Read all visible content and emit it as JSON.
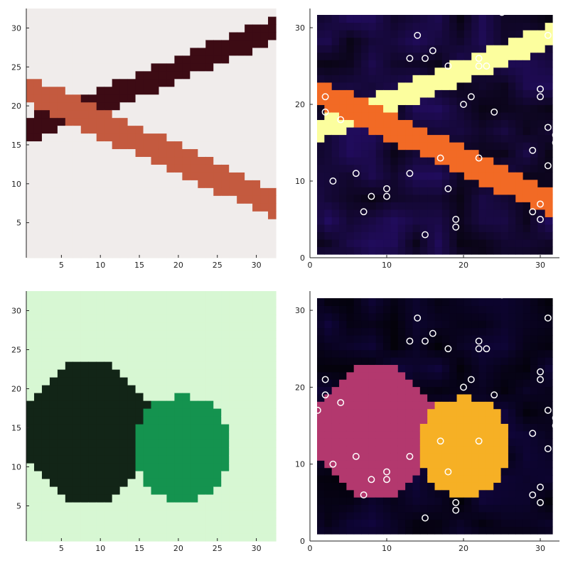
{
  "chart_data": [
    {
      "id": "top-left",
      "type": "heatmap",
      "title": "",
      "xlabel": "",
      "ylabel": "",
      "grid": 32,
      "xlim": [
        0.5,
        32.5
      ],
      "ylim": [
        0.5,
        32.5
      ],
      "xticks": [
        "5",
        "10",
        "15",
        "20",
        "25",
        "30"
      ],
      "yticks": [
        "5",
        "10",
        "15",
        "20",
        "25",
        "30"
      ],
      "background_color": "#f0eceb",
      "series": [
        {
          "color": "#3d0b14",
          "label_value": 1,
          "band": {
            "x0": 1,
            "y0": 17,
            "x1": 32,
            "y1": 29.7,
            "half_width": 1.6
          }
        },
        {
          "color": "#c45a3f",
          "label_value": 2,
          "band": {
            "x0": 1,
            "y0": 22,
            "x1": 32,
            "y1": 7.6,
            "half_width": 1.9
          }
        }
      ]
    },
    {
      "id": "top-right",
      "type": "heatmap",
      "title": "",
      "xlabel": "",
      "ylabel": "",
      "grid": 32,
      "xlim": [
        0,
        32.5
      ],
      "ylim": [
        0,
        32.5
      ],
      "xticks": [
        "0",
        "10",
        "20",
        "30"
      ],
      "yticks": [
        "0",
        "10",
        "20",
        "30"
      ],
      "colormap": "inferno",
      "background_color": "#0f0720",
      "series": [
        {
          "color": "#fcfe9e",
          "band": {
            "x0": 1,
            "y0": 17.3,
            "x1": 32,
            "y1": 29.7,
            "half_width": 1.6
          }
        },
        {
          "color": "#f26a25",
          "band": {
            "x0": 1,
            "y0": 22,
            "x1": 32,
            "y1": 7.6,
            "half_width": 1.9
          }
        }
      ],
      "points": [
        [
          25,
          32
        ],
        [
          14,
          29
        ],
        [
          31,
          29
        ],
        [
          16,
          27
        ],
        [
          13,
          26
        ],
        [
          15,
          26
        ],
        [
          22,
          26
        ],
        [
          18,
          25
        ],
        [
          22,
          25
        ],
        [
          23,
          25
        ],
        [
          30,
          22
        ],
        [
          2,
          21
        ],
        [
          30,
          21
        ],
        [
          21,
          21
        ],
        [
          20,
          20
        ],
        [
          2,
          19
        ],
        [
          24,
          19
        ],
        [
          4,
          18
        ],
        [
          31,
          17
        ],
        [
          32,
          16
        ],
        [
          32,
          15
        ],
        [
          29,
          14
        ],
        [
          17,
          13
        ],
        [
          22,
          13
        ],
        [
          31,
          12
        ],
        [
          6,
          11
        ],
        [
          13,
          11
        ],
        [
          3,
          10
        ],
        [
          10,
          9
        ],
        [
          18,
          9
        ],
        [
          8,
          8
        ],
        [
          10,
          8
        ],
        [
          30,
          7
        ],
        [
          7,
          6
        ],
        [
          29,
          6
        ],
        [
          19,
          5
        ],
        [
          30,
          5
        ],
        [
          19,
          4
        ],
        [
          15,
          3
        ]
      ]
    },
    {
      "id": "bottom-left",
      "type": "heatmap",
      "title": "",
      "xlabel": "",
      "ylabel": "",
      "grid": 32,
      "xlim": [
        0.5,
        32.5
      ],
      "ylim": [
        0.5,
        32.5
      ],
      "xticks": [
        "5",
        "10",
        "15",
        "20",
        "25",
        "30"
      ],
      "yticks": [
        "5",
        "10",
        "15",
        "20",
        "25",
        "30"
      ],
      "background_color": "#d7f7d3",
      "series": [
        {
          "color": "#122517",
          "blob": {
            "cx": 8.5,
            "cy": 14.5,
            "rx": 8.3,
            "ry": 8.7
          }
        },
        {
          "color": "#14934f",
          "blob": {
            "cx": 20.5,
            "cy": 12.5,
            "rx": 6.2,
            "ry": 6.8
          }
        }
      ]
    },
    {
      "id": "bottom-right",
      "type": "heatmap",
      "title": "",
      "xlabel": "",
      "ylabel": "",
      "grid": 32,
      "xlim": [
        0,
        32.5
      ],
      "ylim": [
        0,
        32.5
      ],
      "xticks": [
        "0",
        "10",
        "20",
        "30"
      ],
      "yticks": [
        "0",
        "10",
        "20",
        "30"
      ],
      "colormap": "inferno",
      "background_color": "#05030d",
      "series": [
        {
          "color": "#b3386e",
          "blob": {
            "cx": 8.5,
            "cy": 14.5,
            "rx": 8.3,
            "ry": 8.7
          }
        },
        {
          "color": "#f6b025",
          "blob": {
            "cx": 20.5,
            "cy": 12.5,
            "rx": 6.2,
            "ry": 6.8
          }
        }
      ],
      "points": [
        [
          25,
          32
        ],
        [
          14,
          29
        ],
        [
          31,
          29
        ],
        [
          16,
          27
        ],
        [
          13,
          26
        ],
        [
          15,
          26
        ],
        [
          22,
          26
        ],
        [
          18,
          25
        ],
        [
          22,
          25
        ],
        [
          23,
          25
        ],
        [
          30,
          22
        ],
        [
          2,
          21
        ],
        [
          30,
          21
        ],
        [
          21,
          21
        ],
        [
          20,
          20
        ],
        [
          2,
          19
        ],
        [
          24,
          19
        ],
        [
          4,
          18
        ],
        [
          1,
          17
        ],
        [
          31,
          17
        ],
        [
          32,
          16
        ],
        [
          32,
          15
        ],
        [
          29,
          14
        ],
        [
          17,
          13
        ],
        [
          22,
          13
        ],
        [
          31,
          12
        ],
        [
          6,
          11
        ],
        [
          13,
          11
        ],
        [
          3,
          10
        ],
        [
          10,
          9
        ],
        [
          18,
          9
        ],
        [
          8,
          8
        ],
        [
          10,
          8
        ],
        [
          30,
          7
        ],
        [
          7,
          6
        ],
        [
          29,
          6
        ],
        [
          19,
          5
        ],
        [
          30,
          5
        ],
        [
          19,
          4
        ],
        [
          15,
          3
        ]
      ]
    }
  ]
}
